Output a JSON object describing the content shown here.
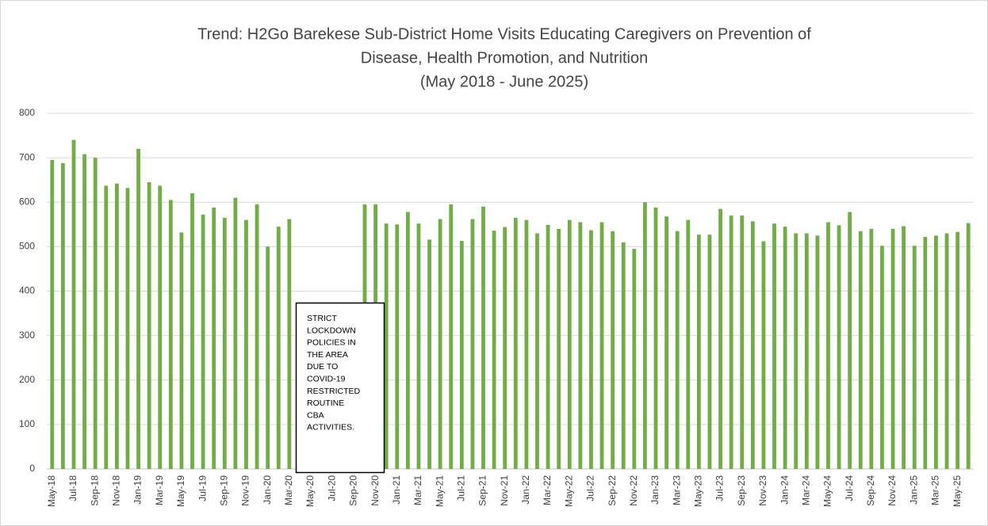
{
  "chart_data": {
    "type": "bar",
    "title": [
      "Trend: H2Go Barekese Sub-District Home Visits Educating Caregivers on Prevention of",
      "Disease, Health Promotion, and Nutrition",
      "(May 2018 - June 2025)"
    ],
    "categories": [
      "May-18",
      null,
      "Jul-18",
      null,
      "Sep-18",
      null,
      "Nov-18",
      null,
      "Jan-19",
      null,
      "Mar-19",
      null,
      "May-19",
      null,
      "Jul-19",
      null,
      "Sep-19",
      null,
      "Nov-19",
      null,
      "Jan-20",
      null,
      "Mar-20",
      null,
      "May-20",
      null,
      "Jul-20",
      null,
      "Sep-20",
      null,
      "Nov-20",
      null,
      "Jan-21",
      null,
      "Mar-21",
      null,
      "May-21",
      null,
      "Jul-21",
      null,
      "Sep-21",
      null,
      "Nov-21",
      null,
      "Jan-22",
      null,
      "Mar-22",
      null,
      "May-22",
      null,
      "Jul-22",
      null,
      "Sep-22",
      null,
      "Nov-22",
      null,
      "Jan-23",
      null,
      "Mar-23",
      null,
      "May-23",
      null,
      "Jul-23",
      null,
      "Sep-23",
      null,
      "Nov-23",
      null,
      "Jan-24",
      null,
      "Mar-24",
      null,
      "May-24",
      null,
      "Jul-24",
      null,
      "Sep-24",
      null,
      "Nov-24",
      null,
      "Jan-25",
      null,
      "Mar-25",
      null,
      "May-25",
      null
    ],
    "values": [
      695,
      688,
      740,
      708,
      700,
      637,
      642,
      632,
      720,
      645,
      637,
      605,
      532,
      620,
      572,
      588,
      565,
      610,
      560,
      595,
      500,
      545,
      562,
      null,
      null,
      null,
      null,
      null,
      null,
      595,
      595,
      552,
      550,
      578,
      552,
      516,
      562,
      595,
      513,
      562,
      590,
      536,
      544,
      565,
      560,
      530,
      549,
      540,
      560,
      555,
      537,
      555,
      535,
      510,
      495,
      600,
      588,
      568,
      535,
      560,
      527,
      527,
      585,
      570,
      570,
      557,
      512,
      552,
      545,
      530,
      530,
      525,
      555,
      548,
      578,
      535,
      540,
      502,
      540,
      546,
      502,
      522,
      525,
      530,
      533,
      553
    ],
    "color": "#70ad47",
    "ylim": [
      0,
      800
    ],
    "yticks": [
      0,
      100,
      200,
      300,
      400,
      500,
      600,
      700,
      800
    ],
    "grid": true,
    "annotation": [
      "STRICT",
      "LOCKDOWN",
      "POLICIES IN",
      "THE AREA",
      "DUE TO",
      "COVID-19",
      "RESTRICTED",
      "ROUTINE",
      "CBA",
      "ACTIVITIES."
    ]
  }
}
